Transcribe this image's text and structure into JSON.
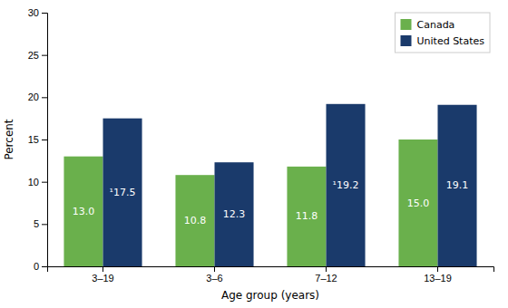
{
  "chart_data": {
    "type": "bar",
    "categories": [
      "3–19",
      "3–6",
      "7–12",
      "13–19"
    ],
    "series": [
      {
        "name": "Canada",
        "color": "#6ab04c",
        "values": [
          13.0,
          10.8,
          11.8,
          15.0
        ],
        "value_labels": [
          "13.0",
          "10.8",
          "11.8",
          "15.0"
        ]
      },
      {
        "name": "United States",
        "color": "#1a3a6b",
        "values": [
          17.5,
          12.3,
          19.2,
          19.1
        ],
        "value_labels": [
          "¹17.5",
          "12.3",
          "¹19.2",
          "19.1"
        ]
      }
    ],
    "xlabel": "Age group (years)",
    "ylabel": "Percent",
    "ylim": [
      0,
      30
    ],
    "yticks": [
      0,
      5,
      10,
      15,
      20,
      25,
      30
    ],
    "data_labels": true,
    "grid": false,
    "legend": "upper right"
  }
}
